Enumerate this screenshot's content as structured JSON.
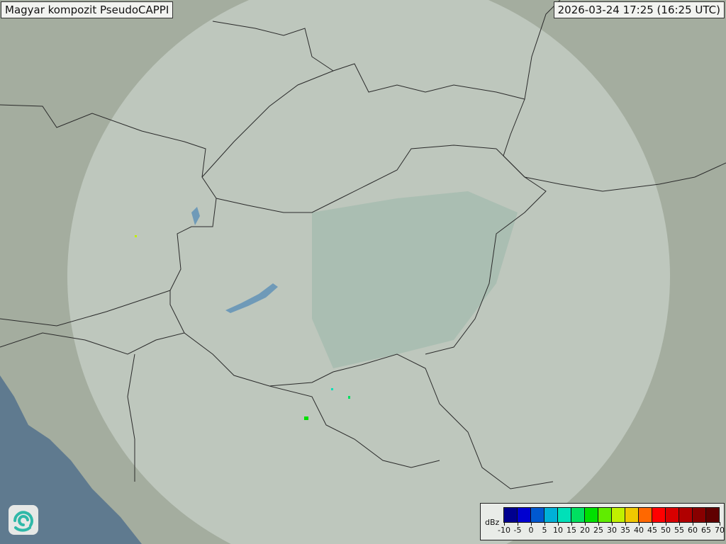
{
  "header": {
    "title": "Magyar kompozit  PseudoCAPPI",
    "timestamp": "2026-03-24 17:25 (16:25 UTC)"
  },
  "logo": {
    "icon": "swirl-logo-icon"
  },
  "legend": {
    "unit": "dBz",
    "labels": [
      "-10",
      "-5",
      "0",
      "5",
      "10",
      "15",
      "20",
      "25",
      "30",
      "35",
      "40",
      "45",
      "50",
      "55",
      "60",
      "65",
      "70"
    ],
    "colors": [
      "#00008f",
      "#0000d0",
      "#0058d0",
      "#00b0d8",
      "#00e0b8",
      "#00e060",
      "#00e000",
      "#60ec00",
      "#c0f000",
      "#f0c800",
      "#ff6800",
      "#ff0000",
      "#d80000",
      "#b00000",
      "#880000",
      "#600000"
    ]
  },
  "colors": {
    "land": "#a4ad9f",
    "radar_coverage": "#c9d3cc",
    "plain": "#9fb5a8",
    "sea": "#5f7a8f",
    "border": "#2a2a2a",
    "water": "#6f9ab8"
  }
}
